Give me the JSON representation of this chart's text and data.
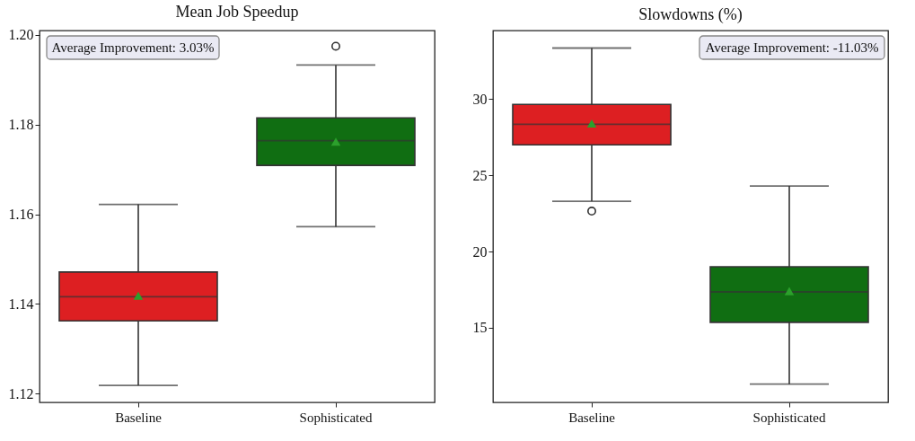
{
  "chart_data": [
    {
      "type": "box",
      "title": "Mean Job Speedup",
      "categories": [
        "Baseline",
        "Sophisticated"
      ],
      "colors": [
        "#dd1f22",
        "#106e12"
      ],
      "boxes": [
        {
          "low": 1.1218,
          "q1": 1.1362,
          "median": 1.1416,
          "q3": 1.1471,
          "high": 1.1622,
          "mean": 1.1418
        },
        {
          "low": 1.1572,
          "q1": 1.1709,
          "median": 1.1764,
          "q3": 1.1815,
          "high": 1.1933,
          "mean": 1.1762,
          "outliers": [
            1.1975
          ]
        }
      ],
      "ylim": [
        1.118,
        1.201
      ],
      "yticks": [
        1.12,
        1.14,
        1.16,
        1.18,
        {
          "value": 1.2,
          "label": "1.20"
        }
      ],
      "annotations": [
        "Average Improvement: 3.03%"
      ]
    },
    {
      "type": "box",
      "title": "Slowdowns (%)",
      "categories": [
        "Baseline",
        "Sophisticated"
      ],
      "colors": [
        "#dd1f22",
        "#106e12"
      ],
      "boxes": [
        {
          "low": 23.3,
          "q1": 27.0,
          "median": 28.35,
          "q3": 29.65,
          "high": 33.35,
          "mean": 28.4,
          "outliers": [
            22.65
          ]
        },
        {
          "low": 11.3,
          "q1": 15.35,
          "median": 17.35,
          "q3": 19.0,
          "high": 24.3,
          "mean": 17.4
        }
      ],
      "ylim": [
        10.1,
        34.5
      ],
      "yticks": [
        15,
        20,
        25,
        30
      ],
      "annotations": [
        "Average Improvement: -11.03%"
      ]
    }
  ]
}
